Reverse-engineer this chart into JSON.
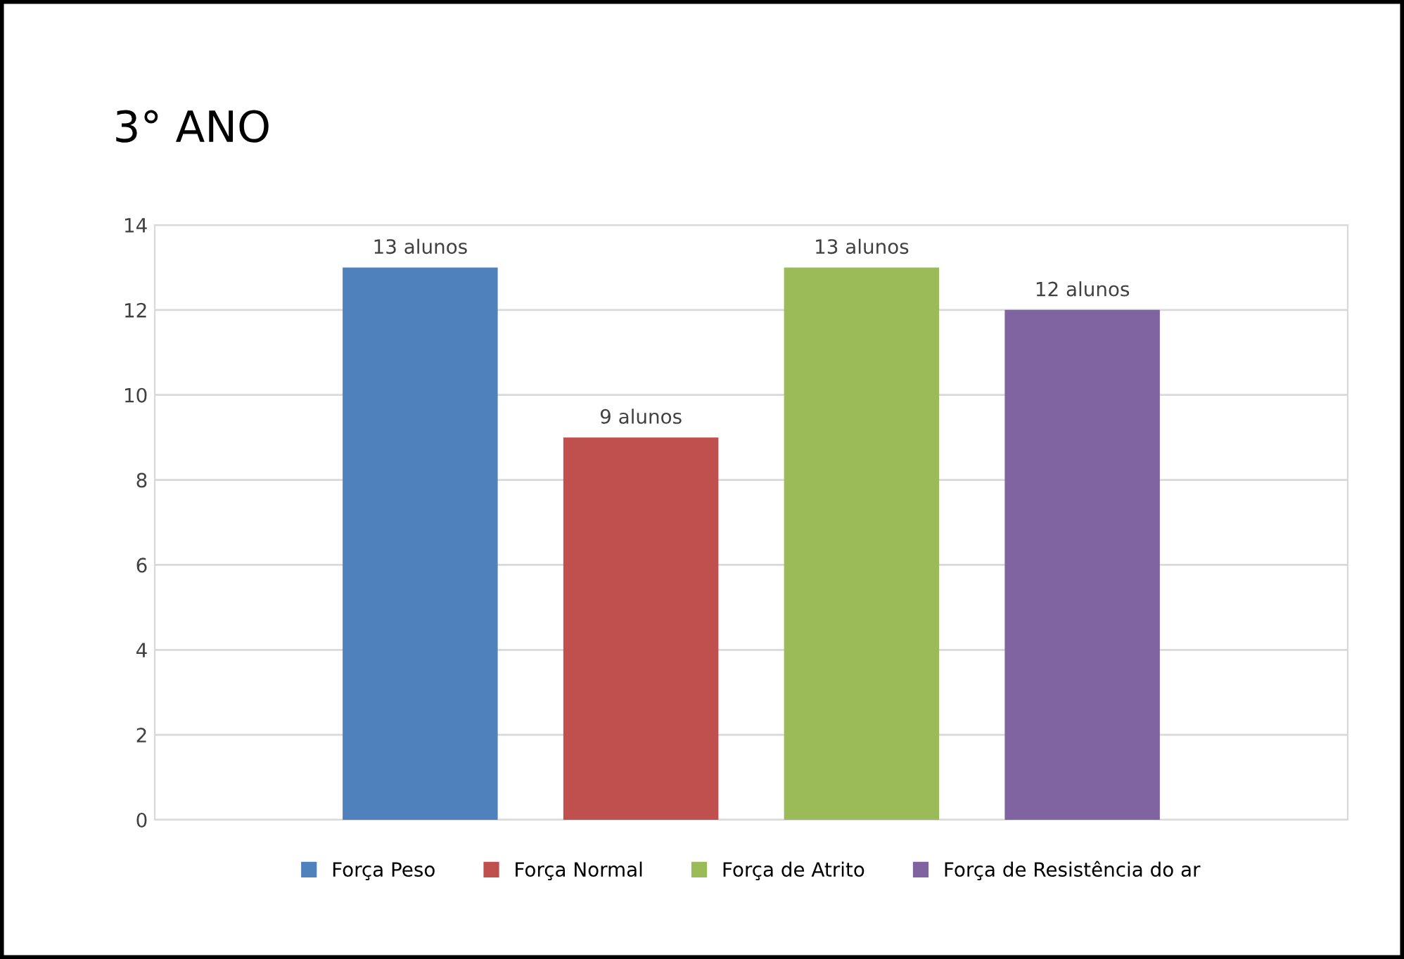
{
  "chart_data": {
    "type": "bar",
    "title": "3° ANO",
    "categories": [
      null
    ],
    "series": [
      {
        "name": "Força Peso",
        "color": "#4f81bd",
        "values": [
          13
        ],
        "value_labels": [
          "13 alunos"
        ]
      },
      {
        "name": "Força Normal",
        "color": "#c0504d",
        "values": [
          9
        ],
        "value_labels": [
          "9 alunos"
        ]
      },
      {
        "name": "Força de Atrito",
        "color": "#9bbb59",
        "values": [
          13
        ],
        "value_labels": [
          "13 alunos"
        ]
      },
      {
        "name": "Força de Resistência do ar",
        "color": "#8064a2",
        "values": [
          12
        ],
        "value_labels": [
          "12 alunos"
        ]
      }
    ],
    "ylim": [
      0,
      14
    ],
    "yticks": [
      0,
      2,
      4,
      6,
      8,
      10,
      12,
      14
    ],
    "grid": "y",
    "legend": "bottom",
    "tick_labels": "y"
  }
}
